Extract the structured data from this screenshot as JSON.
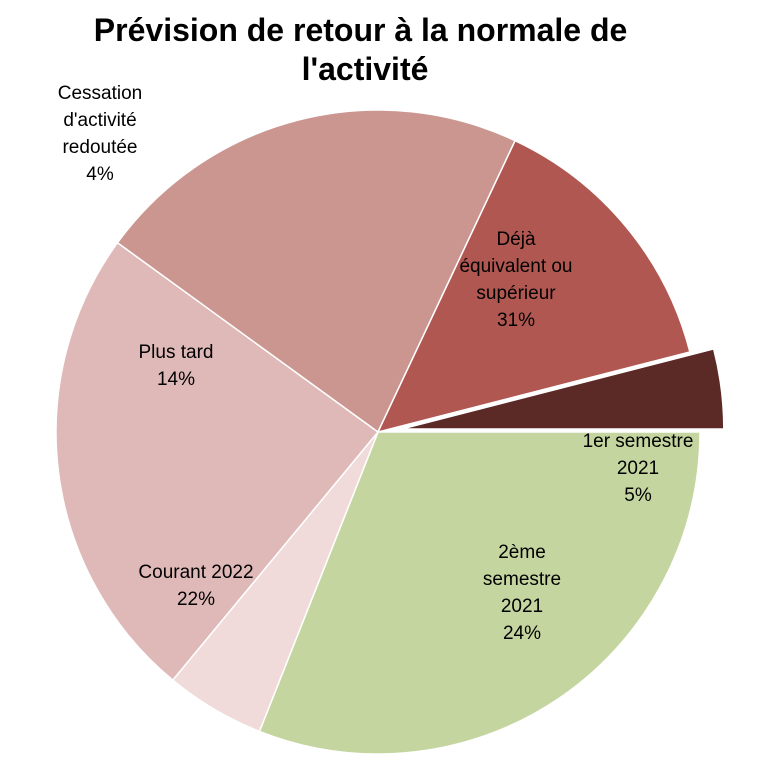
{
  "chart_data": {
    "type": "pie",
    "title": "Prévision de retour à la normale de l'activité",
    "title_lines": [
      "Prévision de retour à la normale de",
      "l'activité"
    ],
    "slices": [
      {
        "label_lines": [
          "Déjà",
          "équivalent ou",
          "supérieur"
        ],
        "value": 31,
        "value_label": "31%",
        "color": "#c5d5a0"
      },
      {
        "label_lines": [
          "1er semestre",
          "2021"
        ],
        "value": 5,
        "value_label": "5%",
        "color": "#f0dada"
      },
      {
        "label_lines": [
          "2ème",
          "semestre",
          "2021"
        ],
        "value": 24,
        "value_label": "24%",
        "color": "#dfb9b8"
      },
      {
        "label_lines": [
          "Courant 2022"
        ],
        "value": 22,
        "value_label": "22%",
        "color": "#cb9590"
      },
      {
        "label_lines": [
          "Plus tard"
        ],
        "value": 14,
        "value_label": "14%",
        "color": "#b05751"
      },
      {
        "label_lines": [
          "Cessation",
          "d'activité",
          "redoutée"
        ],
        "value": 4,
        "value_label": "4%",
        "color": "#5c2a26",
        "exploded": true
      }
    ]
  }
}
